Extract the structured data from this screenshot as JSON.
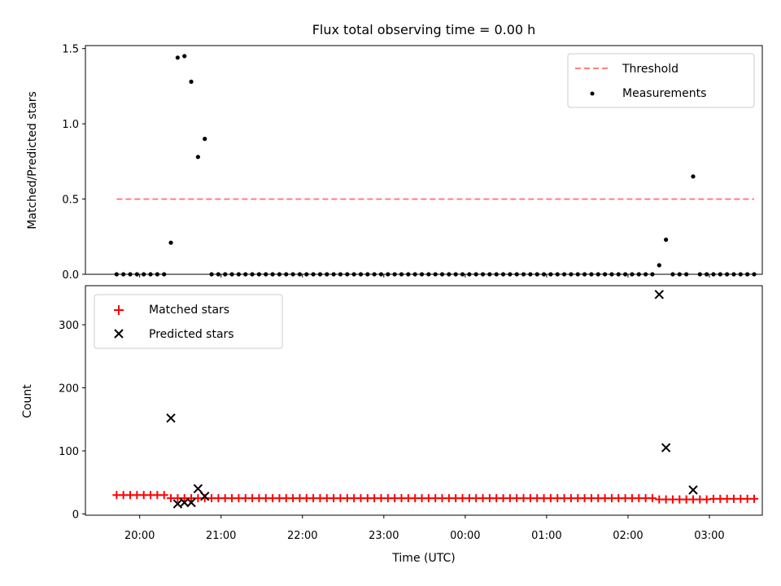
{
  "chart_data": {
    "title": "Flux total observing time = 0.00 h",
    "xlabel": "Time (UTC)",
    "x_ticks": [
      "20:00",
      "21:00",
      "22:00",
      "23:00",
      "00:00",
      "01:00",
      "02:00",
      "03:00"
    ],
    "panels": [
      {
        "type": "scatter",
        "ylabel": "Matched/Predicted stars",
        "ylim": [
          0,
          1.52
        ],
        "y_ticks": [
          "0.0",
          "0.5",
          "1.0",
          "1.5"
        ],
        "legend_position": "top-right",
        "threshold": {
          "name": "Threshold",
          "value": 0.5,
          "color": "#ff7f7f",
          "style": "dashed"
        },
        "series": [
          {
            "name": "Measurements",
            "color": "#000000",
            "marker": "dot",
            "points": [
              [
                "19:43",
                0
              ],
              [
                "19:48",
                0
              ],
              [
                "19:53",
                0
              ],
              [
                "19:58",
                0
              ],
              [
                "20:03",
                0
              ],
              [
                "20:08",
                0
              ],
              [
                "20:13",
                0
              ],
              [
                "20:18",
                0
              ],
              [
                "20:23",
                0.21
              ],
              [
                "20:28",
                1.44
              ],
              [
                "20:33",
                1.45
              ],
              [
                "20:38",
                1.28
              ],
              [
                "20:43",
                0.78
              ],
              [
                "20:48",
                0.9
              ],
              [
                "20:53",
                0
              ],
              [
                "20:58",
                0
              ],
              [
                "21:03",
                0
              ],
              [
                "21:08",
                0
              ],
              [
                "21:13",
                0
              ],
              [
                "21:18",
                0
              ],
              [
                "21:23",
                0
              ],
              [
                "21:28",
                0
              ],
              [
                "21:33",
                0
              ],
              [
                "21:38",
                0
              ],
              [
                "21:43",
                0
              ],
              [
                "21:48",
                0
              ],
              [
                "21:53",
                0
              ],
              [
                "21:58",
                0
              ],
              [
                "22:03",
                0
              ],
              [
                "22:08",
                0
              ],
              [
                "22:13",
                0
              ],
              [
                "22:18",
                0
              ],
              [
                "22:23",
                0
              ],
              [
                "22:28",
                0
              ],
              [
                "22:33",
                0
              ],
              [
                "22:38",
                0
              ],
              [
                "22:43",
                0
              ],
              [
                "22:48",
                0
              ],
              [
                "22:53",
                0
              ],
              [
                "22:58",
                0
              ],
              [
                "23:03",
                0
              ],
              [
                "23:08",
                0
              ],
              [
                "23:13",
                0
              ],
              [
                "23:18",
                0
              ],
              [
                "23:23",
                0
              ],
              [
                "23:28",
                0
              ],
              [
                "23:33",
                0
              ],
              [
                "23:38",
                0
              ],
              [
                "23:43",
                0
              ],
              [
                "23:48",
                0
              ],
              [
                "23:53",
                0
              ],
              [
                "23:58",
                0
              ],
              [
                "00:03",
                0
              ],
              [
                "00:08",
                0
              ],
              [
                "00:13",
                0
              ],
              [
                "00:18",
                0
              ],
              [
                "00:23",
                0
              ],
              [
                "00:28",
                0
              ],
              [
                "00:33",
                0
              ],
              [
                "00:38",
                0
              ],
              [
                "00:43",
                0
              ],
              [
                "00:48",
                0
              ],
              [
                "00:53",
                0
              ],
              [
                "00:58",
                0
              ],
              [
                "01:03",
                0
              ],
              [
                "01:08",
                0
              ],
              [
                "01:13",
                0
              ],
              [
                "01:18",
                0
              ],
              [
                "01:23",
                0
              ],
              [
                "01:28",
                0
              ],
              [
                "01:33",
                0
              ],
              [
                "01:38",
                0
              ],
              [
                "01:43",
                0
              ],
              [
                "01:48",
                0
              ],
              [
                "01:53",
                0
              ],
              [
                "01:58",
                0
              ],
              [
                "02:03",
                0
              ],
              [
                "02:08",
                0
              ],
              [
                "02:13",
                0
              ],
              [
                "02:18",
                0
              ],
              [
                "02:23",
                0.06
              ],
              [
                "02:28",
                0.23
              ],
              [
                "02:33",
                0
              ],
              [
                "02:38",
                0
              ],
              [
                "02:43",
                0
              ],
              [
                "02:48",
                0.65
              ],
              [
                "02:53",
                0
              ],
              [
                "02:58",
                0
              ],
              [
                "03:03",
                0
              ],
              [
                "03:08",
                0
              ],
              [
                "03:13",
                0
              ],
              [
                "03:18",
                0
              ],
              [
                "03:23",
                0
              ],
              [
                "03:28",
                0
              ],
              [
                "03:33",
                0
              ]
            ]
          }
        ]
      },
      {
        "type": "scatter",
        "ylabel": "Count",
        "ylim": [
          -2,
          362
        ],
        "y_ticks": [
          "0",
          "100",
          "200",
          "300"
        ],
        "legend_position": "top-left",
        "series": [
          {
            "name": "Matched stars",
            "color": "#ff0000",
            "marker": "plus",
            "points": [
              [
                "19:43",
                30
              ],
              [
                "19:48",
                30
              ],
              [
                "19:53",
                30
              ],
              [
                "19:58",
                30
              ],
              [
                "20:03",
                30
              ],
              [
                "20:08",
                30
              ],
              [
                "20:13",
                30
              ],
              [
                "20:18",
                30
              ],
              [
                "20:23",
                25
              ],
              [
                "20:28",
                25
              ],
              [
                "20:33",
                25
              ],
              [
                "20:38",
                25
              ],
              [
                "20:43",
                25
              ],
              [
                "20:48",
                25
              ],
              [
                "20:53",
                25
              ],
              [
                "20:58",
                25
              ],
              [
                "21:03",
                25
              ],
              [
                "21:08",
                25
              ],
              [
                "21:13",
                25
              ],
              [
                "21:18",
                25
              ],
              [
                "21:23",
                25
              ],
              [
                "21:28",
                25
              ],
              [
                "21:33",
                25
              ],
              [
                "21:38",
                25
              ],
              [
                "21:43",
                25
              ],
              [
                "21:48",
                25
              ],
              [
                "21:53",
                25
              ],
              [
                "21:58",
                25
              ],
              [
                "22:03",
                25
              ],
              [
                "22:08",
                25
              ],
              [
                "22:13",
                25
              ],
              [
                "22:18",
                25
              ],
              [
                "22:23",
                25
              ],
              [
                "22:28",
                25
              ],
              [
                "22:33",
                25
              ],
              [
                "22:38",
                25
              ],
              [
                "22:43",
                25
              ],
              [
                "22:48",
                25
              ],
              [
                "22:53",
                25
              ],
              [
                "22:58",
                25
              ],
              [
                "23:03",
                25
              ],
              [
                "23:08",
                25
              ],
              [
                "23:13",
                25
              ],
              [
                "23:18",
                25
              ],
              [
                "23:23",
                25
              ],
              [
                "23:28",
                25
              ],
              [
                "23:33",
                25
              ],
              [
                "23:38",
                25
              ],
              [
                "23:43",
                25
              ],
              [
                "23:48",
                25
              ],
              [
                "23:53",
                25
              ],
              [
                "23:58",
                25
              ],
              [
                "00:03",
                25
              ],
              [
                "00:08",
                25
              ],
              [
                "00:13",
                25
              ],
              [
                "00:18",
                25
              ],
              [
                "00:23",
                25
              ],
              [
                "00:28",
                25
              ],
              [
                "00:33",
                25
              ],
              [
                "00:38",
                25
              ],
              [
                "00:43",
                25
              ],
              [
                "00:48",
                25
              ],
              [
                "00:53",
                25
              ],
              [
                "00:58",
                25
              ],
              [
                "01:03",
                25
              ],
              [
                "01:08",
                25
              ],
              [
                "01:13",
                25
              ],
              [
                "01:18",
                25
              ],
              [
                "01:23",
                25
              ],
              [
                "01:28",
                25
              ],
              [
                "01:33",
                25
              ],
              [
                "01:38",
                25
              ],
              [
                "01:43",
                25
              ],
              [
                "01:48",
                25
              ],
              [
                "01:53",
                25
              ],
              [
                "01:58",
                25
              ],
              [
                "02:03",
                25
              ],
              [
                "02:08",
                25
              ],
              [
                "02:13",
                25
              ],
              [
                "02:18",
                25
              ],
              [
                "02:23",
                23
              ],
              [
                "02:28",
                23
              ],
              [
                "02:33",
                23
              ],
              [
                "02:38",
                23
              ],
              [
                "02:43",
                23
              ],
              [
                "02:48",
                23
              ],
              [
                "02:53",
                23
              ],
              [
                "02:58",
                23
              ],
              [
                "03:03",
                24
              ],
              [
                "03:08",
                24
              ],
              [
                "03:13",
                24
              ],
              [
                "03:18",
                24
              ],
              [
                "03:23",
                24
              ],
              [
                "03:28",
                24
              ],
              [
                "03:33",
                24
              ]
            ]
          },
          {
            "name": "Predicted stars",
            "color": "#000000",
            "marker": "x",
            "points": [
              [
                "20:23",
                152
              ],
              [
                "20:28",
                16
              ],
              [
                "20:33",
                18
              ],
              [
                "20:38",
                18
              ],
              [
                "20:43",
                40
              ],
              [
                "20:48",
                28
              ],
              [
                "02:23",
                348
              ],
              [
                "02:28",
                105
              ],
              [
                "02:48",
                38
              ]
            ]
          }
        ]
      }
    ]
  }
}
